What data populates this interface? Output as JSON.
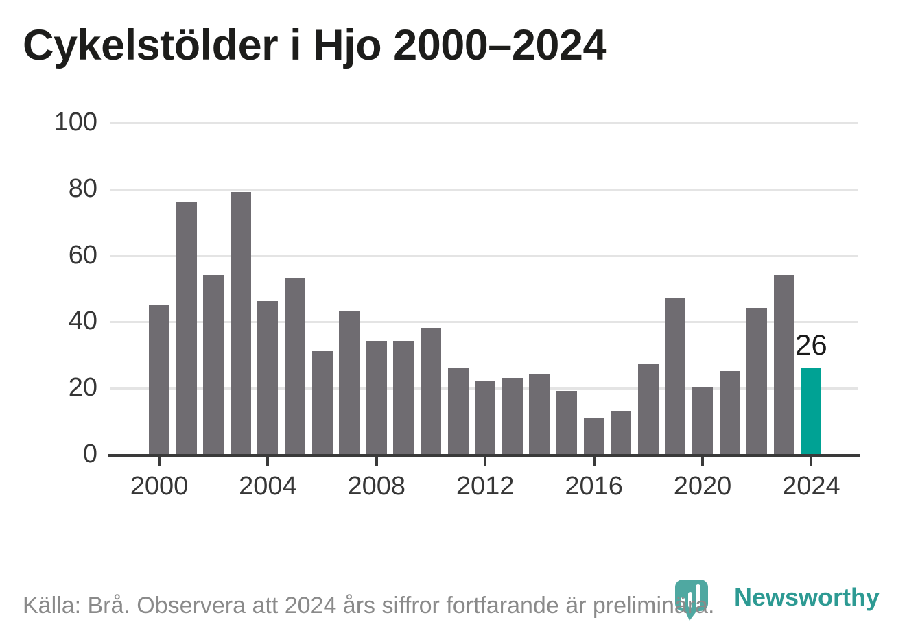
{
  "title": "Cykelstölder i Hjo 2000–2024",
  "footer": {
    "source_note": "Källa: Brå. Observera att 2024 års siffror fortfarande är preliminära."
  },
  "logo": {
    "name": "Newsworthy",
    "icon": "newsworthy-pin-barchart-icon"
  },
  "colors": {
    "bar_default": "#6f6c71",
    "bar_highlight": "#00a294",
    "gridline": "#e4e4e4",
    "axis": "#3a3a3a",
    "tick_label": "#363636",
    "title_text": "#1d1d1b",
    "footer_text": "#8a8a8a",
    "logo_teal": "#2d9a93",
    "logo_icon_teal": "#4fa8a1",
    "value_label": "#1a1a1a"
  },
  "chart_data": {
    "type": "bar",
    "title": "Cykelstölder i Hjo 2000–2024",
    "categories": [
      2000,
      2001,
      2002,
      2003,
      2004,
      2005,
      2006,
      2007,
      2008,
      2009,
      2010,
      2011,
      2012,
      2013,
      2014,
      2015,
      2016,
      2017,
      2018,
      2019,
      2020,
      2021,
      2022,
      2023,
      2024
    ],
    "values": [
      45,
      76,
      54,
      79,
      46,
      53,
      31,
      43,
      34,
      34,
      38,
      26,
      22,
      23,
      24,
      19,
      11,
      13,
      27,
      47,
      20,
      25,
      44,
      54,
      26
    ],
    "highlight_index": 24,
    "highlight_label": "26",
    "x_tick_labels": [
      "2000",
      "2004",
      "2008",
      "2012",
      "2016",
      "2020",
      "2024"
    ],
    "y_ticks": [
      0,
      20,
      40,
      60,
      80,
      100
    ],
    "ylim": [
      0,
      100
    ],
    "xlabel": "",
    "ylabel": "",
    "grid": "horizontal",
    "legend": "none"
  }
}
